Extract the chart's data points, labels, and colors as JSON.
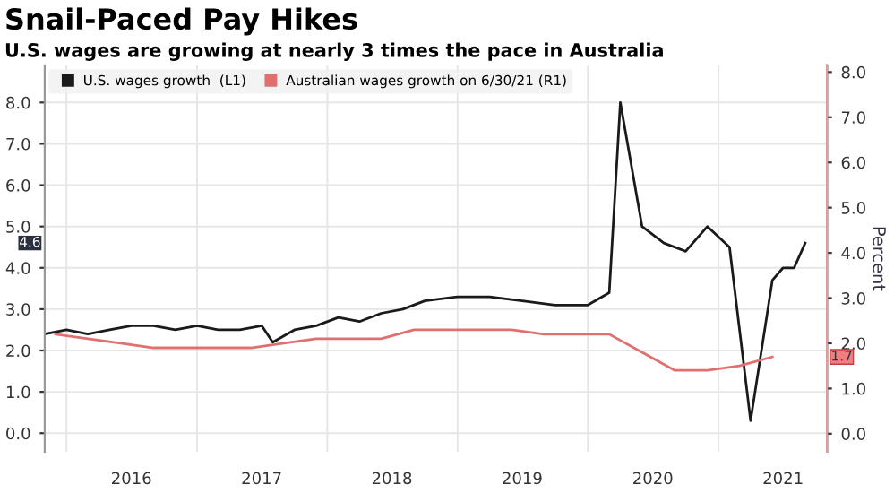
{
  "chart_data": {
    "type": "line",
    "title": "Snail-Paced Pay Hikes",
    "subtitle": "U.S. wages are growing at nearly 3 times the pace in Australia",
    "y2label": "Percent",
    "series": [
      {
        "name": "U.S. wages growth  (L1)",
        "color": "#1a1a1a",
        "x": [
          "2015-11",
          "2016-01",
          "2016-03",
          "2016-05",
          "2016-07",
          "2016-09",
          "2016-11",
          "2017-01",
          "2017-03",
          "2017-05",
          "2017-07",
          "2017-08",
          "2017-10",
          "2017-12",
          "2018-02",
          "2018-04",
          "2018-06",
          "2018-08",
          "2018-10",
          "2019-01",
          "2019-04",
          "2019-07",
          "2019-10",
          "2020-01",
          "2020-03",
          "2020-04",
          "2020-06",
          "2020-08",
          "2020-10",
          "2020-12",
          "2021-02",
          "2021-04",
          "2021-06",
          "2021-07",
          "2021-08",
          "2021-09"
        ],
        "values": [
          2.4,
          2.5,
          2.4,
          2.5,
          2.6,
          2.6,
          2.5,
          2.6,
          2.5,
          2.5,
          2.6,
          2.2,
          2.5,
          2.6,
          2.8,
          2.7,
          2.9,
          3.0,
          3.2,
          3.3,
          3.3,
          3.2,
          3.1,
          3.1,
          3.4,
          8.0,
          5.0,
          4.6,
          4.4,
          5.0,
          4.5,
          0.3,
          3.7,
          4.0,
          4.0,
          4.6
        ]
      },
      {
        "name": "Australian wages growth on 6/30/21 (R1)",
        "color": "#e07070",
        "axis": "y2",
        "x": [
          "2015-12",
          "2016-03",
          "2016-06",
          "2016-09",
          "2016-12",
          "2017-03",
          "2017-06",
          "2017-09",
          "2017-12",
          "2018-03",
          "2018-06",
          "2018-09",
          "2018-12",
          "2019-03",
          "2019-06",
          "2019-09",
          "2019-12",
          "2020-03",
          "2020-06",
          "2020-09",
          "2020-12",
          "2021-03",
          "2021-06"
        ],
        "values": [
          2.2,
          2.1,
          2.0,
          1.9,
          1.9,
          1.9,
          1.9,
          2.0,
          2.1,
          2.1,
          2.1,
          2.3,
          2.3,
          2.3,
          2.3,
          2.2,
          2.2,
          2.2,
          1.8,
          1.4,
          1.4,
          1.5,
          1.7
        ]
      }
    ],
    "annotations": [
      "4.6",
      "1.7"
    ],
    "xlim": [
      "2015-11-01",
      "2021-11-01"
    ],
    "xticks": [
      {
        "value": "2016-01-01",
        "label": null
      },
      {
        "value": "2017-01-01",
        "label": null
      },
      {
        "value": "2018-01-01",
        "label": null
      },
      {
        "value": "2019-01-01",
        "label": null
      },
      {
        "value": "2020-01-01",
        "label": null
      },
      {
        "value": "2021-01-01",
        "label": null
      },
      {
        "value": "2016-07-01",
        "label": "2016"
      },
      {
        "value": "2017-07-01",
        "label": "2017"
      },
      {
        "value": "2018-07-01",
        "label": "2018"
      },
      {
        "value": "2019-07-01",
        "label": "2019"
      },
      {
        "value": "2020-07-01",
        "label": "2020"
      },
      {
        "value": "2021-07-01",
        "label": "2021"
      }
    ],
    "ylim": [
      -0.45,
      8.9
    ],
    "yticks": [
      {
        "value": 0,
        "label": "0.0"
      },
      {
        "value": 1,
        "label": "1.0"
      },
      {
        "value": 2,
        "label": "2.0"
      },
      {
        "value": 3,
        "label": "3.0"
      },
      {
        "value": 4,
        "label": "4.0"
      },
      {
        "value": 5,
        "label": "5.0"
      },
      {
        "value": 6,
        "label": "6.0"
      },
      {
        "value": 7,
        "label": "7.0"
      },
      {
        "value": 8,
        "label": "8.0"
      }
    ],
    "y2lim": [
      -0.4,
      8.15
    ],
    "y2ticks": [
      {
        "value": 0,
        "label": "0.0"
      },
      {
        "value": 1,
        "label": "1.0"
      },
      {
        "value": 2,
        "label": "2.0"
      },
      {
        "value": 3,
        "label": "3.0"
      },
      {
        "value": 4,
        "label": "4.0"
      },
      {
        "value": 5,
        "label": "5.0"
      },
      {
        "value": 6,
        "label": "6.0"
      },
      {
        "value": 7,
        "label": "7.0"
      },
      {
        "value": 8,
        "label": "8.0"
      }
    ],
    "grid": true,
    "legend": "top left",
    "marker": "none",
    "line_style": "solid"
  }
}
